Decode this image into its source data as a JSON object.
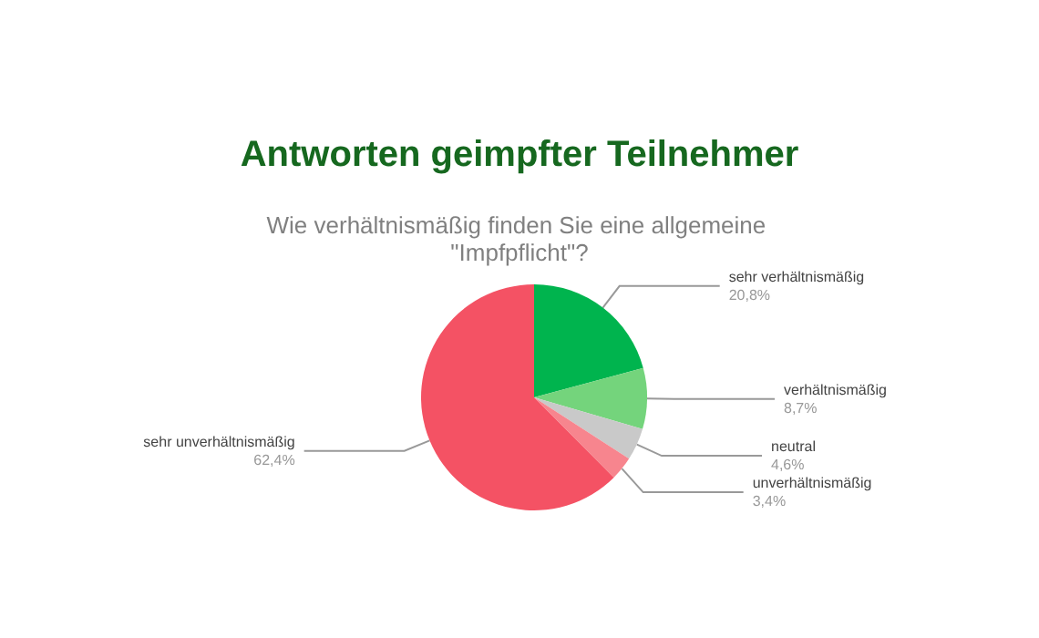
{
  "chart_data": {
    "type": "pie",
    "title": "Antworten geimpfter Teilnehmer",
    "subtitle": "Wie verhältnismäßig finden Sie eine allgemeine \"Impfpflicht\"?",
    "categories": [
      "sehr verhältnismäßig",
      "verhältnismäßig",
      "neutral",
      "unverhältnismäßig",
      "sehr unverhältnismäßig"
    ],
    "values": [
      20.8,
      8.7,
      4.6,
      3.4,
      62.4
    ],
    "value_labels": [
      "20,8%",
      "8,7%",
      "4,6%",
      "3,4%",
      "62,4%"
    ],
    "colors": [
      "#00b44e",
      "#74d47c",
      "#c9c9c9",
      "#f7858e",
      "#f45264"
    ],
    "legend": false
  }
}
